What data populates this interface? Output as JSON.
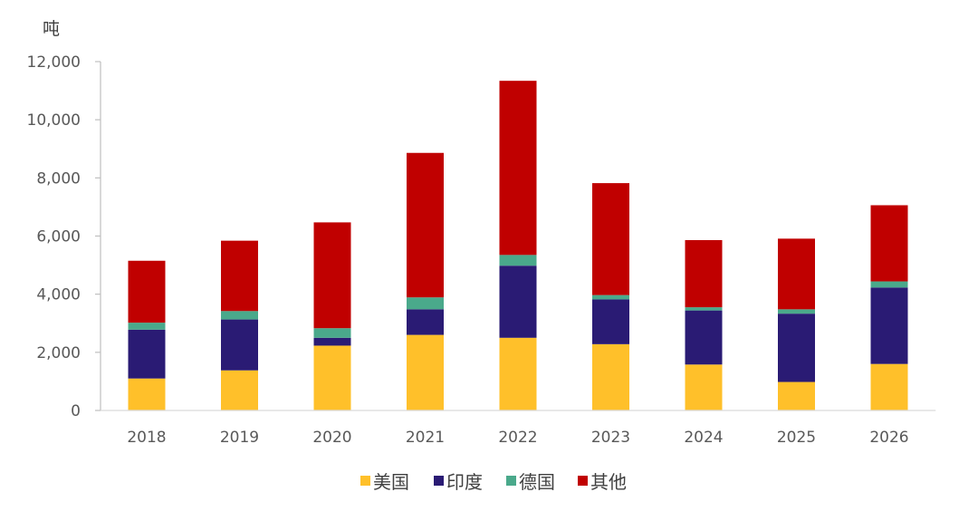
{
  "chart_data": {
    "type": "bar",
    "stacked": true,
    "ylabel": "吨",
    "ylim": [
      0,
      12000
    ],
    "ytick_step": 2000,
    "ytick_labels": [
      "0",
      "2,000",
      "4,000",
      "6,000",
      "8,000",
      "10,000",
      "12,000"
    ],
    "categories": [
      "2018",
      "2019",
      "2020",
      "2021",
      "2022",
      "2023",
      "2024",
      "2025",
      "2026"
    ],
    "series": [
      {
        "name": "美国",
        "color": "#FFC02A",
        "values": [
          1100,
          1380,
          2230,
          2600,
          2500,
          2280,
          1580,
          980,
          1600
        ]
      },
      {
        "name": "印度",
        "color": "#2A1B74",
        "values": [
          1680,
          1750,
          270,
          880,
          2480,
          1540,
          1860,
          2350,
          2630
        ]
      },
      {
        "name": "德国",
        "color": "#4AA98B",
        "values": [
          240,
          290,
          330,
          410,
          370,
          150,
          110,
          150,
          210
        ]
      },
      {
        "name": "其他",
        "color": "#C00000",
        "values": [
          2130,
          2420,
          3640,
          4970,
          5990,
          3850,
          2310,
          2430,
          2620
        ]
      }
    ],
    "legend_position": "bottom-center",
    "grid": false
  }
}
